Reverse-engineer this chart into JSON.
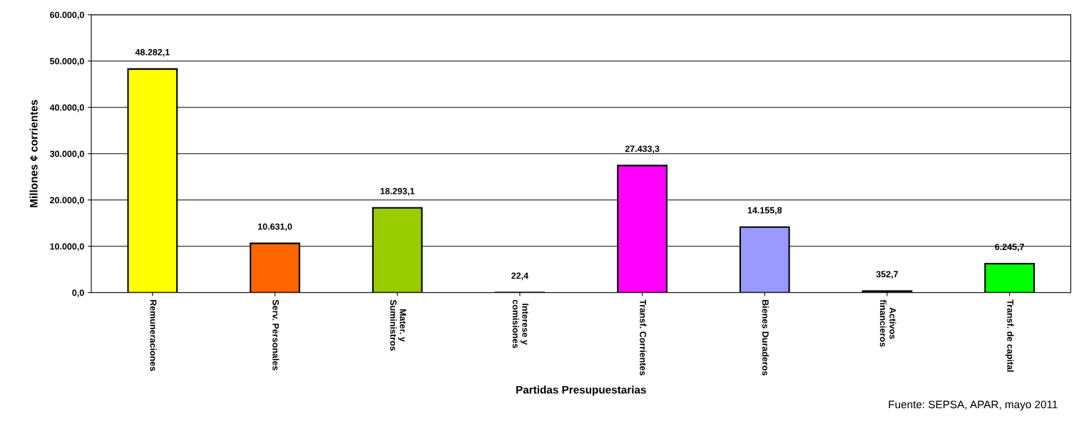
{
  "chart_data": {
    "type": "bar",
    "xlabel": "Partidas Presupuestarias",
    "ylabel": "Millones ¢ corrientes",
    "categories": [
      "Remuneraciones",
      "Serv. Personales",
      "Mater. y\nSuministros",
      "Interese y\ncomisiones",
      "Transf. Corrientes",
      "Bienes Duraderos",
      "Activos\nfinancieros",
      "Transf. de capital"
    ],
    "values": [
      48282.1,
      10631.0,
      18293.1,
      22.4,
      27433.3,
      14155.8,
      352.7,
      6245.7
    ],
    "colors": [
      "#ffff00",
      "#ff6600",
      "#99cc00",
      "#333399",
      "#ff00ff",
      "#9999ff",
      "#333333",
      "#00ff00"
    ],
    "value_labels": [
      "48.282,1",
      "10.631,0",
      "18.293,1",
      "22,4",
      "27.433,3",
      "14.155,8",
      "352,7",
      "6.245,7"
    ],
    "ylim": [
      0,
      60000
    ],
    "yticks": [
      {
        "value": 0,
        "label": "0,0"
      },
      {
        "value": 10000,
        "label": "10.000,0"
      },
      {
        "value": 20000,
        "label": "20.000,0"
      },
      {
        "value": 30000,
        "label": "30.000,0"
      },
      {
        "value": 40000,
        "label": "40.000,0"
      },
      {
        "value": 50000,
        "label": "50.000,0"
      },
      {
        "value": 60000,
        "label": "60.000,0"
      }
    ],
    "grid": "y",
    "legend": false,
    "annotations": [
      "Fuente: SEPSA, APAR, mayo 2011"
    ]
  }
}
